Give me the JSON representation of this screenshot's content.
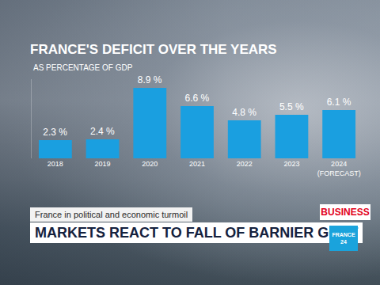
{
  "chart_data": {
    "type": "bar",
    "title": "FRANCE'S DEFICIT OVER THE YEARS",
    "subtitle": "AS PERCENTAGE OF GDP",
    "categories": [
      "2018",
      "2019",
      "2020",
      "2021",
      "2022",
      "2023",
      "2024 (FORECAST)"
    ],
    "values": [
      2.3,
      2.4,
      8.9,
      6.6,
      4.8,
      5.5,
      6.1
    ],
    "value_labels": [
      "2.3 %",
      "2.4 %",
      "8.9 %",
      "6.6 %",
      "4.8 %",
      "5.5 %",
      "6.1 %"
    ],
    "color": "#1a9fe0",
    "ylim": [
      0,
      10
    ],
    "grid": false,
    "data_labels": true,
    "tick_labels": "x"
  },
  "banner": {
    "kicker": "France in political and economic turmoil",
    "headline": "MARKETS REACT TO FALL OF BARNIER GOVT",
    "section": "BUSINESS",
    "channel": "FRANCE 24"
  }
}
